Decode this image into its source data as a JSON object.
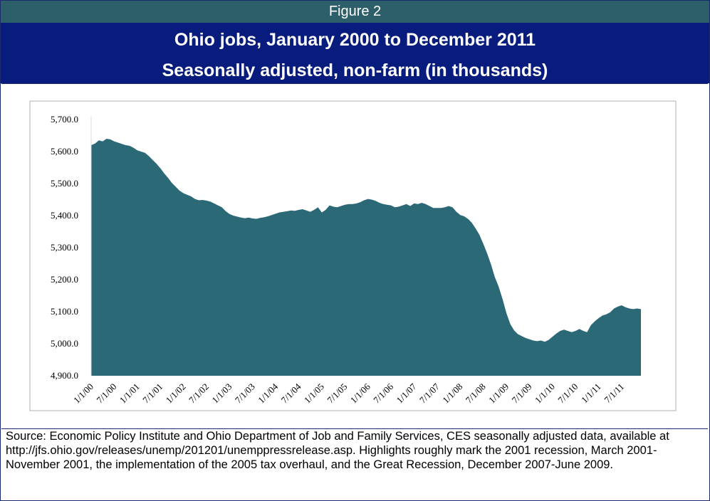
{
  "figure_label": "Figure 2",
  "title_line1": "Ohio jobs, January 2000 to December 2011",
  "title_line2": "Seasonally adjusted, non-farm (in thousands)",
  "source_note": "Source: Economic Policy Institute and Ohio Department of Job and Family Services, CES seasonally adjusted data, available at http://jfs.ohio.gov/releases/unemp/201201/unemppressrelease.asp. Highlights roughly mark the 2001 recession, March 2001-November 2001, the implementation of the 2005 tax overhaul, and the Great Recession, December 2007-June 2009.",
  "colors": {
    "header_bar": "#2d5f6a",
    "title_bg": "#071c7c",
    "area_fill": "#2b6977",
    "plot_border": "#b0b0b0"
  },
  "chart_data": {
    "type": "area",
    "ylim": [
      4900,
      5700
    ],
    "yticks": [
      "5,700.0",
      "5,600.0",
      "5,500.0",
      "5,400.0",
      "5,300.0",
      "5,200.0",
      "5,100.0",
      "5,000.0",
      "4,900.0"
    ],
    "ytick_values": [
      5700,
      5600,
      5500,
      5400,
      5300,
      5200,
      5100,
      5000,
      4900
    ],
    "xticks": [
      "1/1/00",
      "7/1/00",
      "1/1/01",
      "7/1/01",
      "1/1/02",
      "7/1/02",
      "1/1/03",
      "7/1/03",
      "1/1/04",
      "7/1/04",
      "1/1/05",
      "7/1/05",
      "1/1/06",
      "7/1/06",
      "1/1/07",
      "7/1/07",
      "1/1/08",
      "7/1/08",
      "1/1/09",
      "7/1/09",
      "1/1/10",
      "7/1/10",
      "1/1/11",
      "7/1/11"
    ],
    "x_start": "Jan 2000",
    "x_end": "Dec 2011",
    "values": [
      5620,
      5625,
      5635,
      5632,
      5640,
      5638,
      5632,
      5628,
      5624,
      5620,
      5618,
      5612,
      5604,
      5600,
      5596,
      5586,
      5574,
      5562,
      5548,
      5532,
      5518,
      5502,
      5490,
      5478,
      5470,
      5465,
      5460,
      5452,
      5448,
      5449,
      5447,
      5444,
      5438,
      5432,
      5426,
      5414,
      5405,
      5400,
      5397,
      5394,
      5392,
      5394,
      5391,
      5390,
      5393,
      5395,
      5398,
      5402,
      5406,
      5410,
      5412,
      5414,
      5416,
      5415,
      5418,
      5420,
      5416,
      5412,
      5418,
      5426,
      5410,
      5418,
      5432,
      5428,
      5426,
      5430,
      5434,
      5436,
      5436,
      5438,
      5442,
      5448,
      5452,
      5450,
      5446,
      5440,
      5436,
      5434,
      5432,
      5426,
      5428,
      5432,
      5436,
      5430,
      5438,
      5436,
      5440,
      5436,
      5430,
      5424,
      5424,
      5424,
      5426,
      5430,
      5426,
      5412,
      5402,
      5398,
      5390,
      5378,
      5360,
      5340,
      5312,
      5282,
      5248,
      5208,
      5178,
      5140,
      5096,
      5062,
      5042,
      5030,
      5024,
      5018,
      5014,
      5010,
      5008,
      5010,
      5006,
      5012,
      5022,
      5032,
      5040,
      5044,
      5040,
      5036,
      5040,
      5046,
      5040,
      5036,
      5058,
      5070,
      5080,
      5088,
      5092,
      5098,
      5110,
      5116,
      5120,
      5114,
      5110,
      5108,
      5110,
      5108
    ]
  }
}
